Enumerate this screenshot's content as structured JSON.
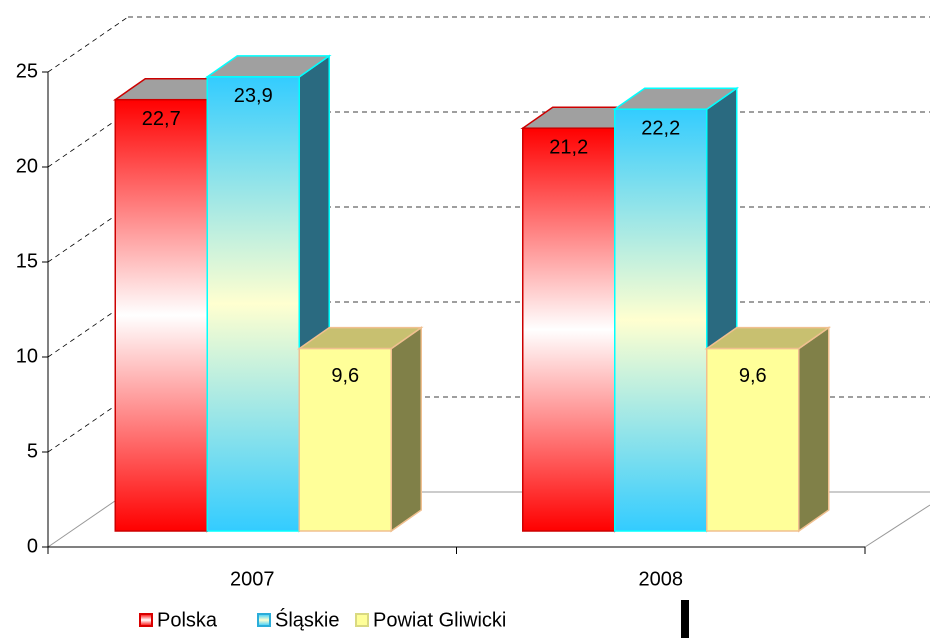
{
  "chart_data": {
    "type": "bar3d",
    "categories": [
      "2007",
      "2008"
    ],
    "series": [
      {
        "name": "Polska",
        "color": "#ff0000",
        "values": [
          22.7,
          21.2
        ],
        "value_labels": [
          "22,7",
          "21,2"
        ]
      },
      {
        "name": "Śląskie",
        "color": "#33ccff",
        "values": [
          23.9,
          22.2
        ],
        "value_labels": [
          "23,9",
          "22,2"
        ]
      },
      {
        "name": "Powiat Gliwicki",
        "color": "#ffff99",
        "values": [
          9.6,
          9.6
        ],
        "value_labels": [
          "9,6",
          "9,6"
        ]
      }
    ],
    "ylim": [
      0,
      25
    ],
    "yticks": [
      0,
      5,
      10,
      15,
      20,
      25
    ],
    "grid": true,
    "legend": "bottom"
  }
}
